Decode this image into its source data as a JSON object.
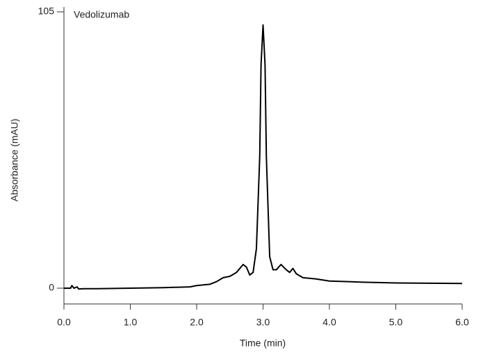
{
  "chart_data": {
    "type": "line",
    "annotation": "Vedolizumab",
    "xlabel": "Time (min)",
    "ylabel": "Absorbance (mAU)",
    "x": [
      0.0,
      0.1,
      0.12,
      0.15,
      0.2,
      0.22,
      0.3,
      0.5,
      1.0,
      1.5,
      1.9,
      2.0,
      2.2,
      2.3,
      2.4,
      2.5,
      2.6,
      2.7,
      2.75,
      2.8,
      2.85,
      2.9,
      2.95,
      2.97,
      3.0,
      3.03,
      3.05,
      3.1,
      3.15,
      3.2,
      3.27,
      3.35,
      3.4,
      3.45,
      3.5,
      3.6,
      3.8,
      4.0,
      4.5,
      5.0,
      5.5,
      6.0
    ],
    "series": [
      {
        "name": "Vedolizumab",
        "color": "#000000",
        "values": [
          0,
          0,
          1,
          0,
          0.5,
          -0.3,
          -0.2,
          -0.2,
          0,
          0.2,
          0.5,
          1,
          1.5,
          2.5,
          4,
          4.5,
          6,
          9,
          8,
          5,
          6,
          15,
          50,
          85,
          100,
          85,
          50,
          12,
          7,
          7,
          9,
          7,
          6,
          7.5,
          5.5,
          4,
          3.5,
          2.7,
          2.3,
          2,
          1.9,
          1.8
        ]
      }
    ],
    "xlim": [
      0,
      6
    ],
    "ylim": [
      -6,
      105
    ],
    "xticks": [
      {
        "value": 0,
        "label": "0.0"
      },
      {
        "value": 1,
        "label": "1.0"
      },
      {
        "value": 2,
        "label": "2.0"
      },
      {
        "value": 3,
        "label": "3.0"
      },
      {
        "value": 4,
        "label": "4.0"
      },
      {
        "value": 5,
        "label": "5.0"
      },
      {
        "value": 6,
        "label": "6.0"
      }
    ],
    "yticks": [
      0,
      105
    ]
  }
}
